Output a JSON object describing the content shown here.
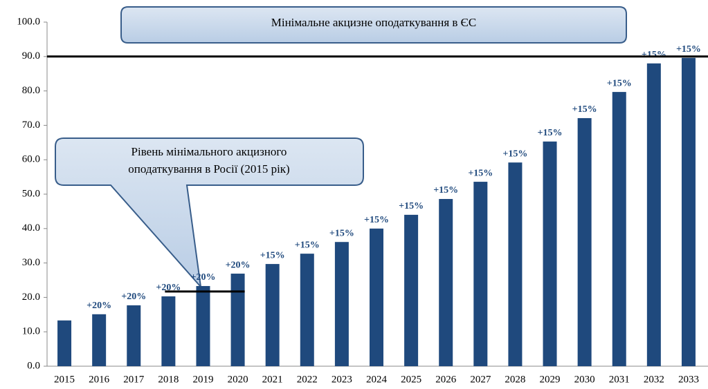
{
  "chart_data": {
    "type": "bar",
    "categories": [
      "2015",
      "2016",
      "2017",
      "2018",
      "2019",
      "2020",
      "2021",
      "2022",
      "2023",
      "2024",
      "2025",
      "2026",
      "2027",
      "2028",
      "2029",
      "2030",
      "2031",
      "2032",
      "2033"
    ],
    "values": [
      13.3,
      15.1,
      17.7,
      20.3,
      23.3,
      26.9,
      29.7,
      32.7,
      36.1,
      40.0,
      44.0,
      48.6,
      53.6,
      59.2,
      65.3,
      72.1,
      79.7,
      88.0,
      89.6
    ],
    "growth_labels": [
      null,
      "+20%",
      "+20%",
      "+20%",
      "+20%",
      "+20%",
      "+15%",
      "+15%",
      "+15%",
      "+15%",
      "+15%",
      "+15%",
      "+15%",
      "+15%",
      "+15%",
      "+15%",
      "+15%",
      "+15%",
      "+15%"
    ],
    "color": "#1f497d",
    "ylim": [
      0,
      100
    ],
    "yticks": [
      {
        "value": 0,
        "label": "0.0"
      },
      {
        "value": 10,
        "label": "10.0"
      },
      {
        "value": 20,
        "label": "20.0"
      },
      {
        "value": 30,
        "label": "30.0"
      },
      {
        "value": 40,
        "label": "40.0"
      },
      {
        "value": 50,
        "label": "50.0"
      },
      {
        "value": 60,
        "label": "60.0"
      },
      {
        "value": 70,
        "label": "70.0"
      },
      {
        "value": 80,
        "label": "80.0"
      },
      {
        "value": 90,
        "label": "90.0"
      },
      {
        "value": 100,
        "label": "100.0"
      }
    ],
    "reference_lines": [
      {
        "value": 90,
        "label_lines": [
          "Мінімальне акцизне оподаткування в ЄС"
        ]
      },
      {
        "value": 21.7,
        "label_lines": [
          "Рівень мінімального акцизного",
          "оподаткування в Росії (2015 рік)"
        ]
      }
    ]
  }
}
